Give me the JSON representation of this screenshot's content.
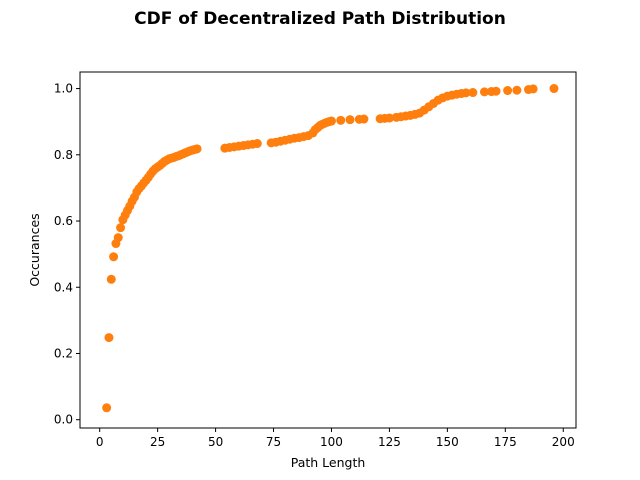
{
  "chart_data": {
    "type": "scatter",
    "title": "CDF of Decentralized Path Distribution",
    "xlabel": "Path Length",
    "ylabel": "Occurances",
    "xlim": [
      -8.5,
      205.5
    ],
    "ylim": [
      -0.025,
      1.05
    ],
    "xticks": [
      0,
      25,
      50,
      75,
      100,
      125,
      150,
      175,
      200
    ],
    "yticks": [
      0.0,
      0.2,
      0.4,
      0.6,
      0.8,
      1.0
    ],
    "ytick_labels": [
      "0.0",
      "0.2",
      "0.4",
      "0.6",
      "0.8",
      "1.0"
    ],
    "grid": false,
    "legend": "none",
    "marker_color": "#ff7f0e",
    "points": [
      [
        3,
        0.036
      ],
      [
        4,
        0.248
      ],
      [
        5,
        0.424
      ],
      [
        6,
        0.492
      ],
      [
        7,
        0.532
      ],
      [
        8,
        0.55
      ],
      [
        9,
        0.58
      ],
      [
        10,
        0.604
      ],
      [
        11,
        0.618
      ],
      [
        12,
        0.632
      ],
      [
        13,
        0.645
      ],
      [
        14,
        0.66
      ],
      [
        15,
        0.672
      ],
      [
        16,
        0.688
      ],
      [
        17,
        0.698
      ],
      [
        18,
        0.706
      ],
      [
        19,
        0.715
      ],
      [
        20,
        0.723
      ],
      [
        21,
        0.732
      ],
      [
        22,
        0.742
      ],
      [
        23,
        0.751
      ],
      [
        24,
        0.758
      ],
      [
        25,
        0.763
      ],
      [
        26,
        0.768
      ],
      [
        27,
        0.774
      ],
      [
        28,
        0.78
      ],
      [
        29,
        0.784
      ],
      [
        30,
        0.788
      ],
      [
        31,
        0.79
      ],
      [
        32,
        0.792
      ],
      [
        33,
        0.795
      ],
      [
        34,
        0.797
      ],
      [
        35,
        0.8
      ],
      [
        36,
        0.803
      ],
      [
        37,
        0.806
      ],
      [
        38,
        0.809
      ],
      [
        39,
        0.812
      ],
      [
        40,
        0.814
      ],
      [
        41,
        0.816
      ],
      [
        42,
        0.818
      ],
      [
        54,
        0.82
      ],
      [
        56,
        0.822
      ],
      [
        58,
        0.824
      ],
      [
        60,
        0.826
      ],
      [
        62,
        0.828
      ],
      [
        64,
        0.83
      ],
      [
        66,
        0.832
      ],
      [
        68,
        0.834
      ],
      [
        74,
        0.836
      ],
      [
        76,
        0.838
      ],
      [
        78,
        0.841
      ],
      [
        80,
        0.844
      ],
      [
        82,
        0.847
      ],
      [
        84,
        0.85
      ],
      [
        86,
        0.852
      ],
      [
        88,
        0.855
      ],
      [
        90,
        0.858
      ],
      [
        92,
        0.866
      ],
      [
        93,
        0.876
      ],
      [
        94,
        0.882
      ],
      [
        95,
        0.888
      ],
      [
        96,
        0.892
      ],
      [
        97,
        0.895
      ],
      [
        98,
        0.898
      ],
      [
        99,
        0.9
      ],
      [
        100,
        0.902
      ],
      [
        104,
        0.904
      ],
      [
        108,
        0.906
      ],
      [
        112,
        0.907
      ],
      [
        114,
        0.908
      ],
      [
        121,
        0.909
      ],
      [
        123,
        0.91
      ],
      [
        125,
        0.911
      ],
      [
        128,
        0.913
      ],
      [
        130,
        0.915
      ],
      [
        132,
        0.917
      ],
      [
        134,
        0.919
      ],
      [
        136,
        0.922
      ],
      [
        138,
        0.926
      ],
      [
        140,
        0.935
      ],
      [
        142,
        0.945
      ],
      [
        144,
        0.955
      ],
      [
        146,
        0.965
      ],
      [
        148,
        0.972
      ],
      [
        150,
        0.977
      ],
      [
        152,
        0.98
      ],
      [
        154,
        0.983
      ],
      [
        156,
        0.985
      ],
      [
        158,
        0.987
      ],
      [
        161,
        0.988
      ],
      [
        166,
        0.99
      ],
      [
        169,
        0.991
      ],
      [
        171,
        0.992
      ],
      [
        176,
        0.994
      ],
      [
        180,
        0.995
      ],
      [
        185,
        0.997
      ],
      [
        187,
        0.999
      ],
      [
        196,
        1.0
      ]
    ]
  }
}
